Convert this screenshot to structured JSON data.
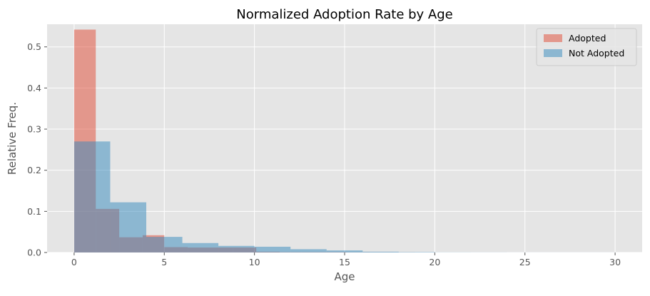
{
  "chart_data": {
    "type": "bar",
    "title": "Normalized Adoption Rate by Age",
    "xlabel": "Age",
    "ylabel": "Relative Freq.",
    "xlim": [
      -1.5,
      31.5
    ],
    "ylim": [
      0,
      0.555
    ],
    "x_ticks": [
      0,
      5,
      10,
      15,
      20,
      25,
      30
    ],
    "x_tick_labels": [
      "0",
      "5",
      "10",
      "15",
      "20",
      "25",
      "30"
    ],
    "y_ticks": [
      0.0,
      0.1,
      0.2,
      0.3,
      0.4,
      0.5
    ],
    "y_tick_labels": [
      "0.0",
      "0.1",
      "0.2",
      "0.3",
      "0.4",
      "0.5"
    ],
    "grid": true,
    "legend_position": "top-right",
    "series": [
      {
        "name": "Adopted",
        "color": "#E24A33",
        "opacity": 0.5,
        "bins": [
          {
            "x0": 0,
            "x1": 1.2,
            "value": 0.542
          },
          {
            "x0": 1.2,
            "x1": 2.5,
            "value": 0.106
          },
          {
            "x0": 2.5,
            "x1": 3.8,
            "value": 0.037
          },
          {
            "x0": 3.8,
            "x1": 5.0,
            "value": 0.042
          },
          {
            "x0": 5.0,
            "x1": 6.3,
            "value": 0.013
          },
          {
            "x0": 6.3,
            "x1": 7.6,
            "value": 0.012
          },
          {
            "x0": 7.6,
            "x1": 8.8,
            "value": 0.012
          },
          {
            "x0": 8.8,
            "x1": 10.1,
            "value": 0.012
          },
          {
            "x0": 10.1,
            "x1": 11.4,
            "value": 0.002
          },
          {
            "x0": 11.4,
            "x1": 12.6,
            "value": 0.001
          },
          {
            "x0": 12.6,
            "x1": 13.9,
            "value": 0.001
          },
          {
            "x0": 13.9,
            "x1": 15.1,
            "value": 0.001
          },
          {
            "x0": 15.1,
            "x1": 16.4,
            "value": 0.0005
          },
          {
            "x0": 16.4,
            "x1": 17.7,
            "value": 0.0003
          },
          {
            "x0": 17.7,
            "x1": 18.9,
            "value": 0.0002
          }
        ]
      },
      {
        "name": "Not Adopted",
        "color": "#348ABD",
        "opacity": 0.5,
        "bins": [
          {
            "x0": 0,
            "x1": 2,
            "value": 0.27
          },
          {
            "x0": 2,
            "x1": 4,
            "value": 0.122
          },
          {
            "x0": 4,
            "x1": 6,
            "value": 0.038
          },
          {
            "x0": 6,
            "x1": 8,
            "value": 0.023
          },
          {
            "x0": 8,
            "x1": 10,
            "value": 0.016
          },
          {
            "x0": 10,
            "x1": 12,
            "value": 0.014
          },
          {
            "x0": 12,
            "x1": 14,
            "value": 0.008
          },
          {
            "x0": 14,
            "x1": 16,
            "value": 0.005
          },
          {
            "x0": 16,
            "x1": 18,
            "value": 0.002
          },
          {
            "x0": 18,
            "x1": 20,
            "value": 0.001
          },
          {
            "x0": 20,
            "x1": 22,
            "value": 0.0003
          },
          {
            "x0": 22,
            "x1": 24,
            "value": 0.0002
          },
          {
            "x0": 24,
            "x1": 26,
            "value": 0.0001
          },
          {
            "x0": 26,
            "x1": 28,
            "value": 0.0001
          },
          {
            "x0": 28,
            "x1": 30,
            "value": 0.0001
          }
        ]
      }
    ]
  }
}
